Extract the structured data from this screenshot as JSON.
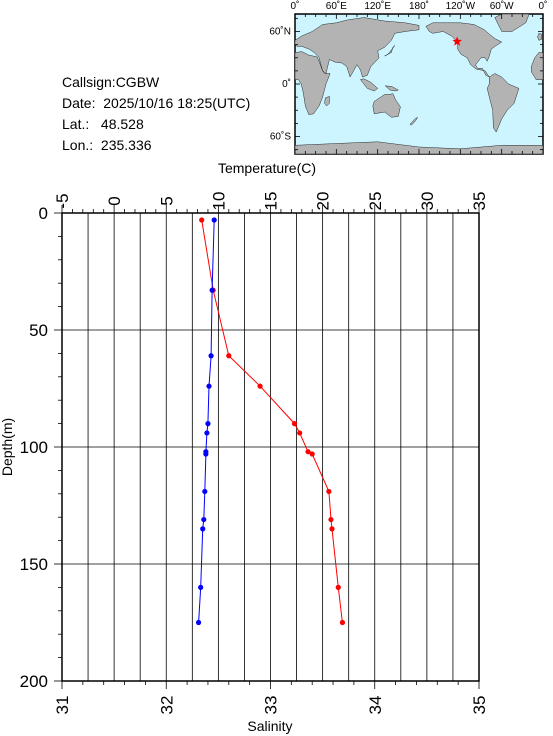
{
  "info": {
    "callsign": "Callsign:CGBW",
    "date": "Date:  2025/10/16 18:25(UTC)",
    "lat": "Lat.:   48.528",
    "lon": "Lon.:  235.336"
  },
  "map": {
    "top_ticks": [
      "0˚",
      "60˚E",
      "120˚E",
      "180˚",
      "120˚W",
      "60˚W",
      "0˚"
    ],
    "left_ticks": [
      "60˚N",
      "0˚",
      "60˚S"
    ],
    "ocean_color": "#ccf5ff",
    "land_color": "#b3b3b3",
    "station_color": "#ff0000",
    "station": {
      "lon": 235.336,
      "lat": 48.528
    }
  },
  "chart_data": {
    "type": "line",
    "temperature_axis_title": "Temperature(C)",
    "salinity_axis_title": "Salinity",
    "depth_axis_title": "Depth(m)",
    "temperature_ticks": [
      "-5",
      "0",
      "5",
      "10",
      "15",
      "20",
      "25",
      "30",
      "35"
    ],
    "salinity_ticks": [
      "31",
      "32",
      "33",
      "34",
      "35"
    ],
    "depth_ticks": [
      "0",
      "50",
      "100",
      "150",
      "200"
    ],
    "temperature_range": [
      -5,
      35
    ],
    "salinity_range": [
      31,
      35
    ],
    "depth_range": [
      0,
      200
    ],
    "grid": true,
    "series": [
      {
        "quantity": "temperature",
        "color": "#ff0000",
        "points": [
          {
            "depth": 3,
            "value": 8.4
          },
          {
            "depth": 33,
            "value": 9.5
          },
          {
            "depth": 61,
            "value": 11.0
          },
          {
            "depth": 74,
            "value": 14.0
          },
          {
            "depth": 90,
            "value": 17.3
          },
          {
            "depth": 94,
            "value": 17.8
          },
          {
            "depth": 102,
            "value": 18.6
          },
          {
            "depth": 103,
            "value": 19.0
          },
          {
            "depth": 119,
            "value": 20.6
          },
          {
            "depth": 131,
            "value": 20.8
          },
          {
            "depth": 135,
            "value": 20.9
          },
          {
            "depth": 160,
            "value": 21.5
          },
          {
            "depth": 175,
            "value": 21.9
          }
        ]
      },
      {
        "quantity": "salinity",
        "color": "#0000ff",
        "points": [
          {
            "depth": 3,
            "value": 32.46
          },
          {
            "depth": 33,
            "value": 32.44
          },
          {
            "depth": 61,
            "value": 32.43
          },
          {
            "depth": 74,
            "value": 32.41
          },
          {
            "depth": 90,
            "value": 32.4
          },
          {
            "depth": 94,
            "value": 32.39
          },
          {
            "depth": 102,
            "value": 32.38
          },
          {
            "depth": 103,
            "value": 32.38
          },
          {
            "depth": 119,
            "value": 32.37
          },
          {
            "depth": 131,
            "value": 32.36
          },
          {
            "depth": 135,
            "value": 32.35
          },
          {
            "depth": 160,
            "value": 32.33
          },
          {
            "depth": 175,
            "value": 32.31
          }
        ]
      }
    ]
  }
}
